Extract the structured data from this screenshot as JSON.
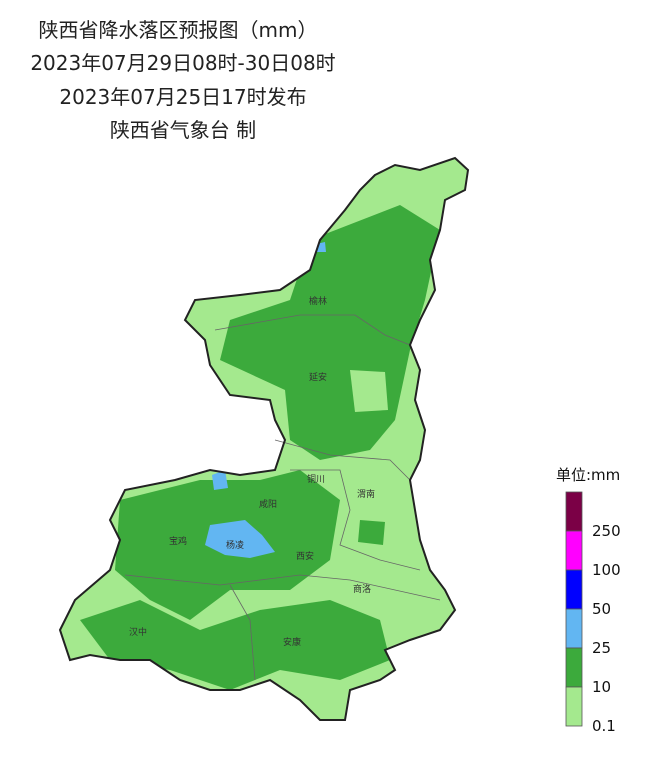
{
  "header": {
    "lines": [
      "陕西省降水落区预报图（mm）",
      "2023年07月29日08时-30日08时",
      "2023年07月25日17时发布",
      "陕西省气象台 制"
    ]
  },
  "cities": [
    "榆林",
    "延安",
    "铜川",
    "渭南",
    "咸阳",
    "宝鸡",
    "杨凌",
    "西安",
    "商洛",
    "汉中",
    "安康"
  ],
  "legend": {
    "unit": "单位:mm",
    "items": [
      {
        "label": 250,
        "color": "#7b0046"
      },
      {
        "label": 100,
        "color": "#ff00ff"
      },
      {
        "label": 50,
        "color": "#0000ff"
      },
      {
        "label": 25,
        "color": "#62b6f2"
      },
      {
        "label": 10,
        "color": "#3caa3c"
      },
      {
        "label": 0.1,
        "color": "#a4e98e"
      }
    ]
  }
}
